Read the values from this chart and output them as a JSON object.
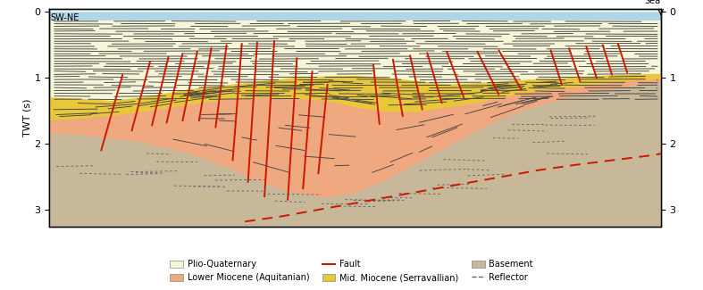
{
  "figsize": [
    7.87,
    3.25
  ],
  "dpi": 100,
  "xlim": [
    0,
    10
  ],
  "ylim": [
    3.25,
    -0.05
  ],
  "ylabel": "TWT (s)",
  "left_label": "SW-NE",
  "right_label": "Sea",
  "colors": {
    "sea": "#aed6e8",
    "plio_quaternary": "#f7f5d8",
    "mid_miocene": "#e8c83a",
    "lower_miocene": "#f0a880",
    "basement": "#c8b89a",
    "fault": "#cc1800",
    "reflector_upper": "#444444",
    "reflector_lower": "#666666",
    "background": "#ffffff"
  },
  "yticks": [
    0,
    1,
    2,
    3
  ],
  "sea_thickness": 0.13,
  "plio_base_pts": [
    [
      0.0,
      1.3
    ],
    [
      0.5,
      1.32
    ],
    [
      1.0,
      1.35
    ],
    [
      1.5,
      1.3
    ],
    [
      2.0,
      1.22
    ],
    [
      2.5,
      1.15
    ],
    [
      3.0,
      1.1
    ],
    [
      3.5,
      1.05
    ],
    [
      4.0,
      1.0
    ],
    [
      4.5,
      0.98
    ],
    [
      5.0,
      0.97
    ],
    [
      5.5,
      1.0
    ],
    [
      6.0,
      1.05
    ],
    [
      6.5,
      1.1
    ],
    [
      7.0,
      1.08
    ],
    [
      7.5,
      1.05
    ],
    [
      8.0,
      1.02
    ],
    [
      8.5,
      1.0
    ],
    [
      9.0,
      0.97
    ],
    [
      9.5,
      0.95
    ],
    [
      10.0,
      0.94
    ]
  ],
  "mid_mio_base_pts": [
    [
      0.0,
      1.65
    ],
    [
      0.5,
      1.62
    ],
    [
      1.0,
      1.58
    ],
    [
      1.5,
      1.52
    ],
    [
      2.0,
      1.45
    ],
    [
      2.5,
      1.38
    ],
    [
      3.0,
      1.32
    ],
    [
      3.5,
      1.3
    ],
    [
      4.0,
      1.32
    ],
    [
      4.5,
      1.35
    ],
    [
      5.0,
      1.45
    ],
    [
      5.5,
      1.52
    ],
    [
      6.0,
      1.52
    ],
    [
      6.5,
      1.45
    ],
    [
      7.0,
      1.38
    ],
    [
      7.5,
      1.28
    ],
    [
      8.0,
      1.2
    ],
    [
      8.5,
      1.15
    ],
    [
      9.0,
      1.1
    ],
    [
      9.5,
      1.05
    ],
    [
      10.0,
      1.02
    ]
  ],
  "lower_mio_base_pts": [
    [
      0.0,
      1.85
    ],
    [
      0.5,
      1.87
    ],
    [
      1.0,
      1.92
    ],
    [
      1.5,
      1.98
    ],
    [
      2.0,
      2.08
    ],
    [
      2.5,
      2.22
    ],
    [
      3.0,
      2.4
    ],
    [
      3.5,
      2.6
    ],
    [
      4.0,
      2.75
    ],
    [
      4.5,
      2.82
    ],
    [
      5.0,
      2.75
    ],
    [
      5.5,
      2.55
    ],
    [
      6.0,
      2.3
    ],
    [
      6.5,
      2.05
    ],
    [
      7.0,
      1.8
    ],
    [
      7.5,
      1.58
    ],
    [
      8.0,
      1.42
    ],
    [
      8.5,
      1.3
    ],
    [
      9.0,
      1.2
    ],
    [
      9.5,
      1.13
    ],
    [
      10.0,
      1.08
    ]
  ],
  "faults": [
    [
      [
        1.2,
        0.95
      ],
      [
        0.85,
        2.1
      ]
    ],
    [
      [
        1.65,
        0.75
      ],
      [
        1.35,
        1.8
      ]
    ],
    [
      [
        1.95,
        0.68
      ],
      [
        1.68,
        1.72
      ]
    ],
    [
      [
        2.18,
        0.63
      ],
      [
        1.92,
        1.68
      ]
    ],
    [
      [
        2.42,
        0.6
      ],
      [
        2.18,
        1.65
      ]
    ],
    [
      [
        2.65,
        0.55
      ],
      [
        2.45,
        1.65
      ]
    ],
    [
      [
        2.9,
        0.5
      ],
      [
        2.72,
        1.75
      ]
    ],
    [
      [
        3.15,
        0.48
      ],
      [
        3.0,
        2.25
      ]
    ],
    [
      [
        3.4,
        0.46
      ],
      [
        3.25,
        2.58
      ]
    ],
    [
      [
        3.68,
        0.44
      ],
      [
        3.52,
        2.8
      ]
    ],
    [
      [
        4.05,
        0.7
      ],
      [
        3.9,
        2.85
      ]
    ],
    [
      [
        4.3,
        0.9
      ],
      [
        4.15,
        2.68
      ]
    ],
    [
      [
        4.55,
        1.1
      ],
      [
        4.4,
        2.45
      ]
    ],
    [
      [
        5.3,
        0.8
      ],
      [
        5.4,
        1.7
      ]
    ],
    [
      [
        5.62,
        0.72
      ],
      [
        5.78,
        1.58
      ]
    ],
    [
      [
        5.9,
        0.66
      ],
      [
        6.1,
        1.48
      ]
    ],
    [
      [
        6.18,
        0.62
      ],
      [
        6.42,
        1.38
      ]
    ],
    [
      [
        6.5,
        0.6
      ],
      [
        6.78,
        1.3
      ]
    ],
    [
      [
        7.0,
        0.6
      ],
      [
        7.35,
        1.25
      ]
    ],
    [
      [
        7.35,
        0.58
      ],
      [
        7.72,
        1.18
      ]
    ],
    [
      [
        8.2,
        0.58
      ],
      [
        8.38,
        1.1
      ]
    ],
    [
      [
        8.5,
        0.55
      ],
      [
        8.68,
        1.05
      ]
    ],
    [
      [
        8.78,
        0.52
      ],
      [
        8.95,
        1.0
      ]
    ],
    [
      [
        9.05,
        0.5
      ],
      [
        9.2,
        0.95
      ]
    ],
    [
      [
        9.3,
        0.48
      ],
      [
        9.45,
        0.92
      ]
    ]
  ],
  "deep_fault_pts": [
    [
      3.2,
      3.18
    ],
    [
      3.8,
      3.1
    ],
    [
      4.4,
      3.0
    ],
    [
      5.0,
      2.9
    ],
    [
      5.6,
      2.8
    ],
    [
      6.2,
      2.7
    ],
    [
      6.8,
      2.6
    ],
    [
      7.4,
      2.5
    ],
    [
      8.0,
      2.4
    ],
    [
      8.6,
      2.32
    ],
    [
      9.2,
      2.25
    ],
    [
      9.8,
      2.18
    ],
    [
      10.0,
      2.15
    ]
  ]
}
